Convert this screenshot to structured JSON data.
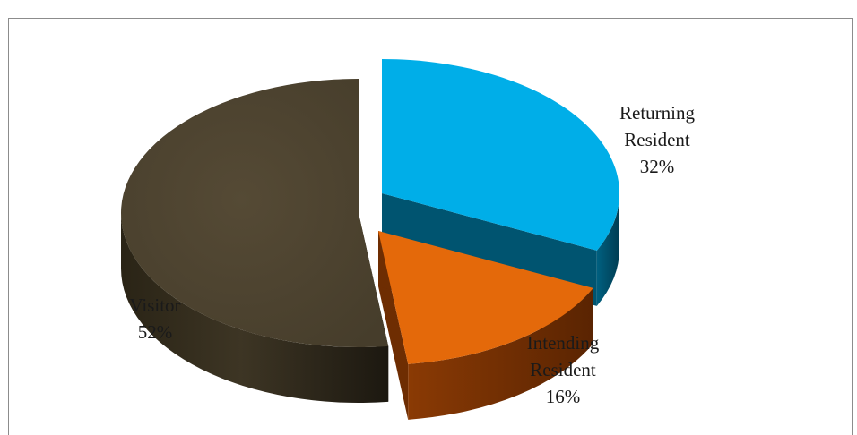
{
  "caption": "",
  "chart_data": {
    "type": "pie",
    "style": "3d-exploded",
    "title": "",
    "slices": [
      {
        "label_lines": [
          "Returning",
          "Resident",
          "32%"
        ],
        "name": "Returning Resident",
        "value": 32,
        "color": "#00aee8",
        "side_color": "#005470"
      },
      {
        "label_lines": [
          "Intending",
          "Resident",
          "16%"
        ],
        "name": "Intending Resident",
        "value": 16,
        "color": "#e4690a",
        "side_color": "#6e2d02"
      },
      {
        "label_lines": [
          "Visitor",
          "52%"
        ],
        "name": "Visitor",
        "value": 52,
        "color": "#4d4330",
        "side_color": "#2b2518"
      }
    ],
    "legend": "none"
  }
}
